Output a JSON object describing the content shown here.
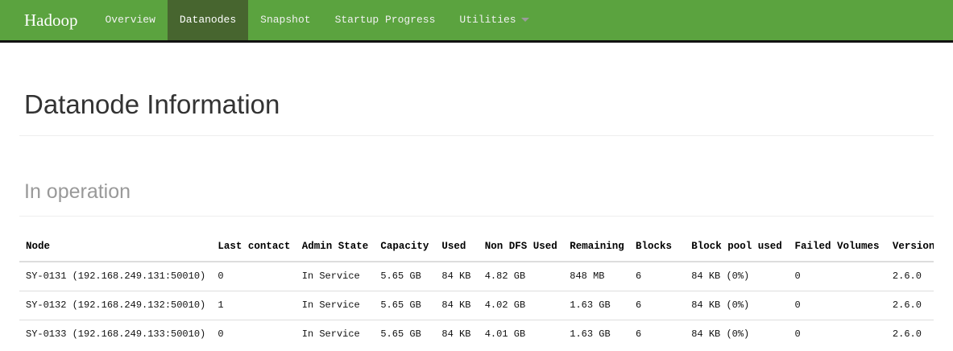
{
  "navbar": {
    "brand": "Hadoop",
    "items": [
      {
        "label": "Overview",
        "active": false,
        "dropdown": false
      },
      {
        "label": "Datanodes",
        "active": true,
        "dropdown": false
      },
      {
        "label": "Snapshot",
        "active": false,
        "dropdown": false
      },
      {
        "label": "Startup Progress",
        "active": false,
        "dropdown": false
      },
      {
        "label": "Utilities",
        "active": false,
        "dropdown": true
      }
    ]
  },
  "page": {
    "title": "Datanode Information",
    "section_title": "In operation"
  },
  "table": {
    "columns": [
      "Node",
      "Last contact",
      "Admin State",
      "Capacity",
      "Used",
      "Non DFS Used",
      "Remaining",
      "Blocks",
      "Block pool used",
      "Failed Volumes",
      "Version"
    ],
    "rows": [
      [
        "SY-0131 (192.168.249.131:50010)",
        "0",
        "In Service",
        "5.65 GB",
        "84 KB",
        "4.82 GB",
        "848 MB",
        "6",
        "84 KB (0%)",
        "0",
        "2.6.0"
      ],
      [
        "SY-0132 (192.168.249.132:50010)",
        "1",
        "In Service",
        "5.65 GB",
        "84 KB",
        "4.02 GB",
        "1.63 GB",
        "6",
        "84 KB (0%)",
        "0",
        "2.6.0"
      ],
      [
        "SY-0133 (192.168.249.133:50010)",
        "0",
        "In Service",
        "5.65 GB",
        "84 KB",
        "4.01 GB",
        "1.63 GB",
        "6",
        "84 KB (0%)",
        "0",
        "2.6.0"
      ]
    ]
  },
  "icons": {
    "utilities_caret": "chevron-down-icon"
  },
  "colors": {
    "navbar_bg": "#5ba33f",
    "navbar_active_bg": "#47652f",
    "navbar_border": "#121212",
    "heading_color": "#333333",
    "section_color": "#999999",
    "divider_color": "#eeeeee",
    "table_border": "#dddddd"
  }
}
